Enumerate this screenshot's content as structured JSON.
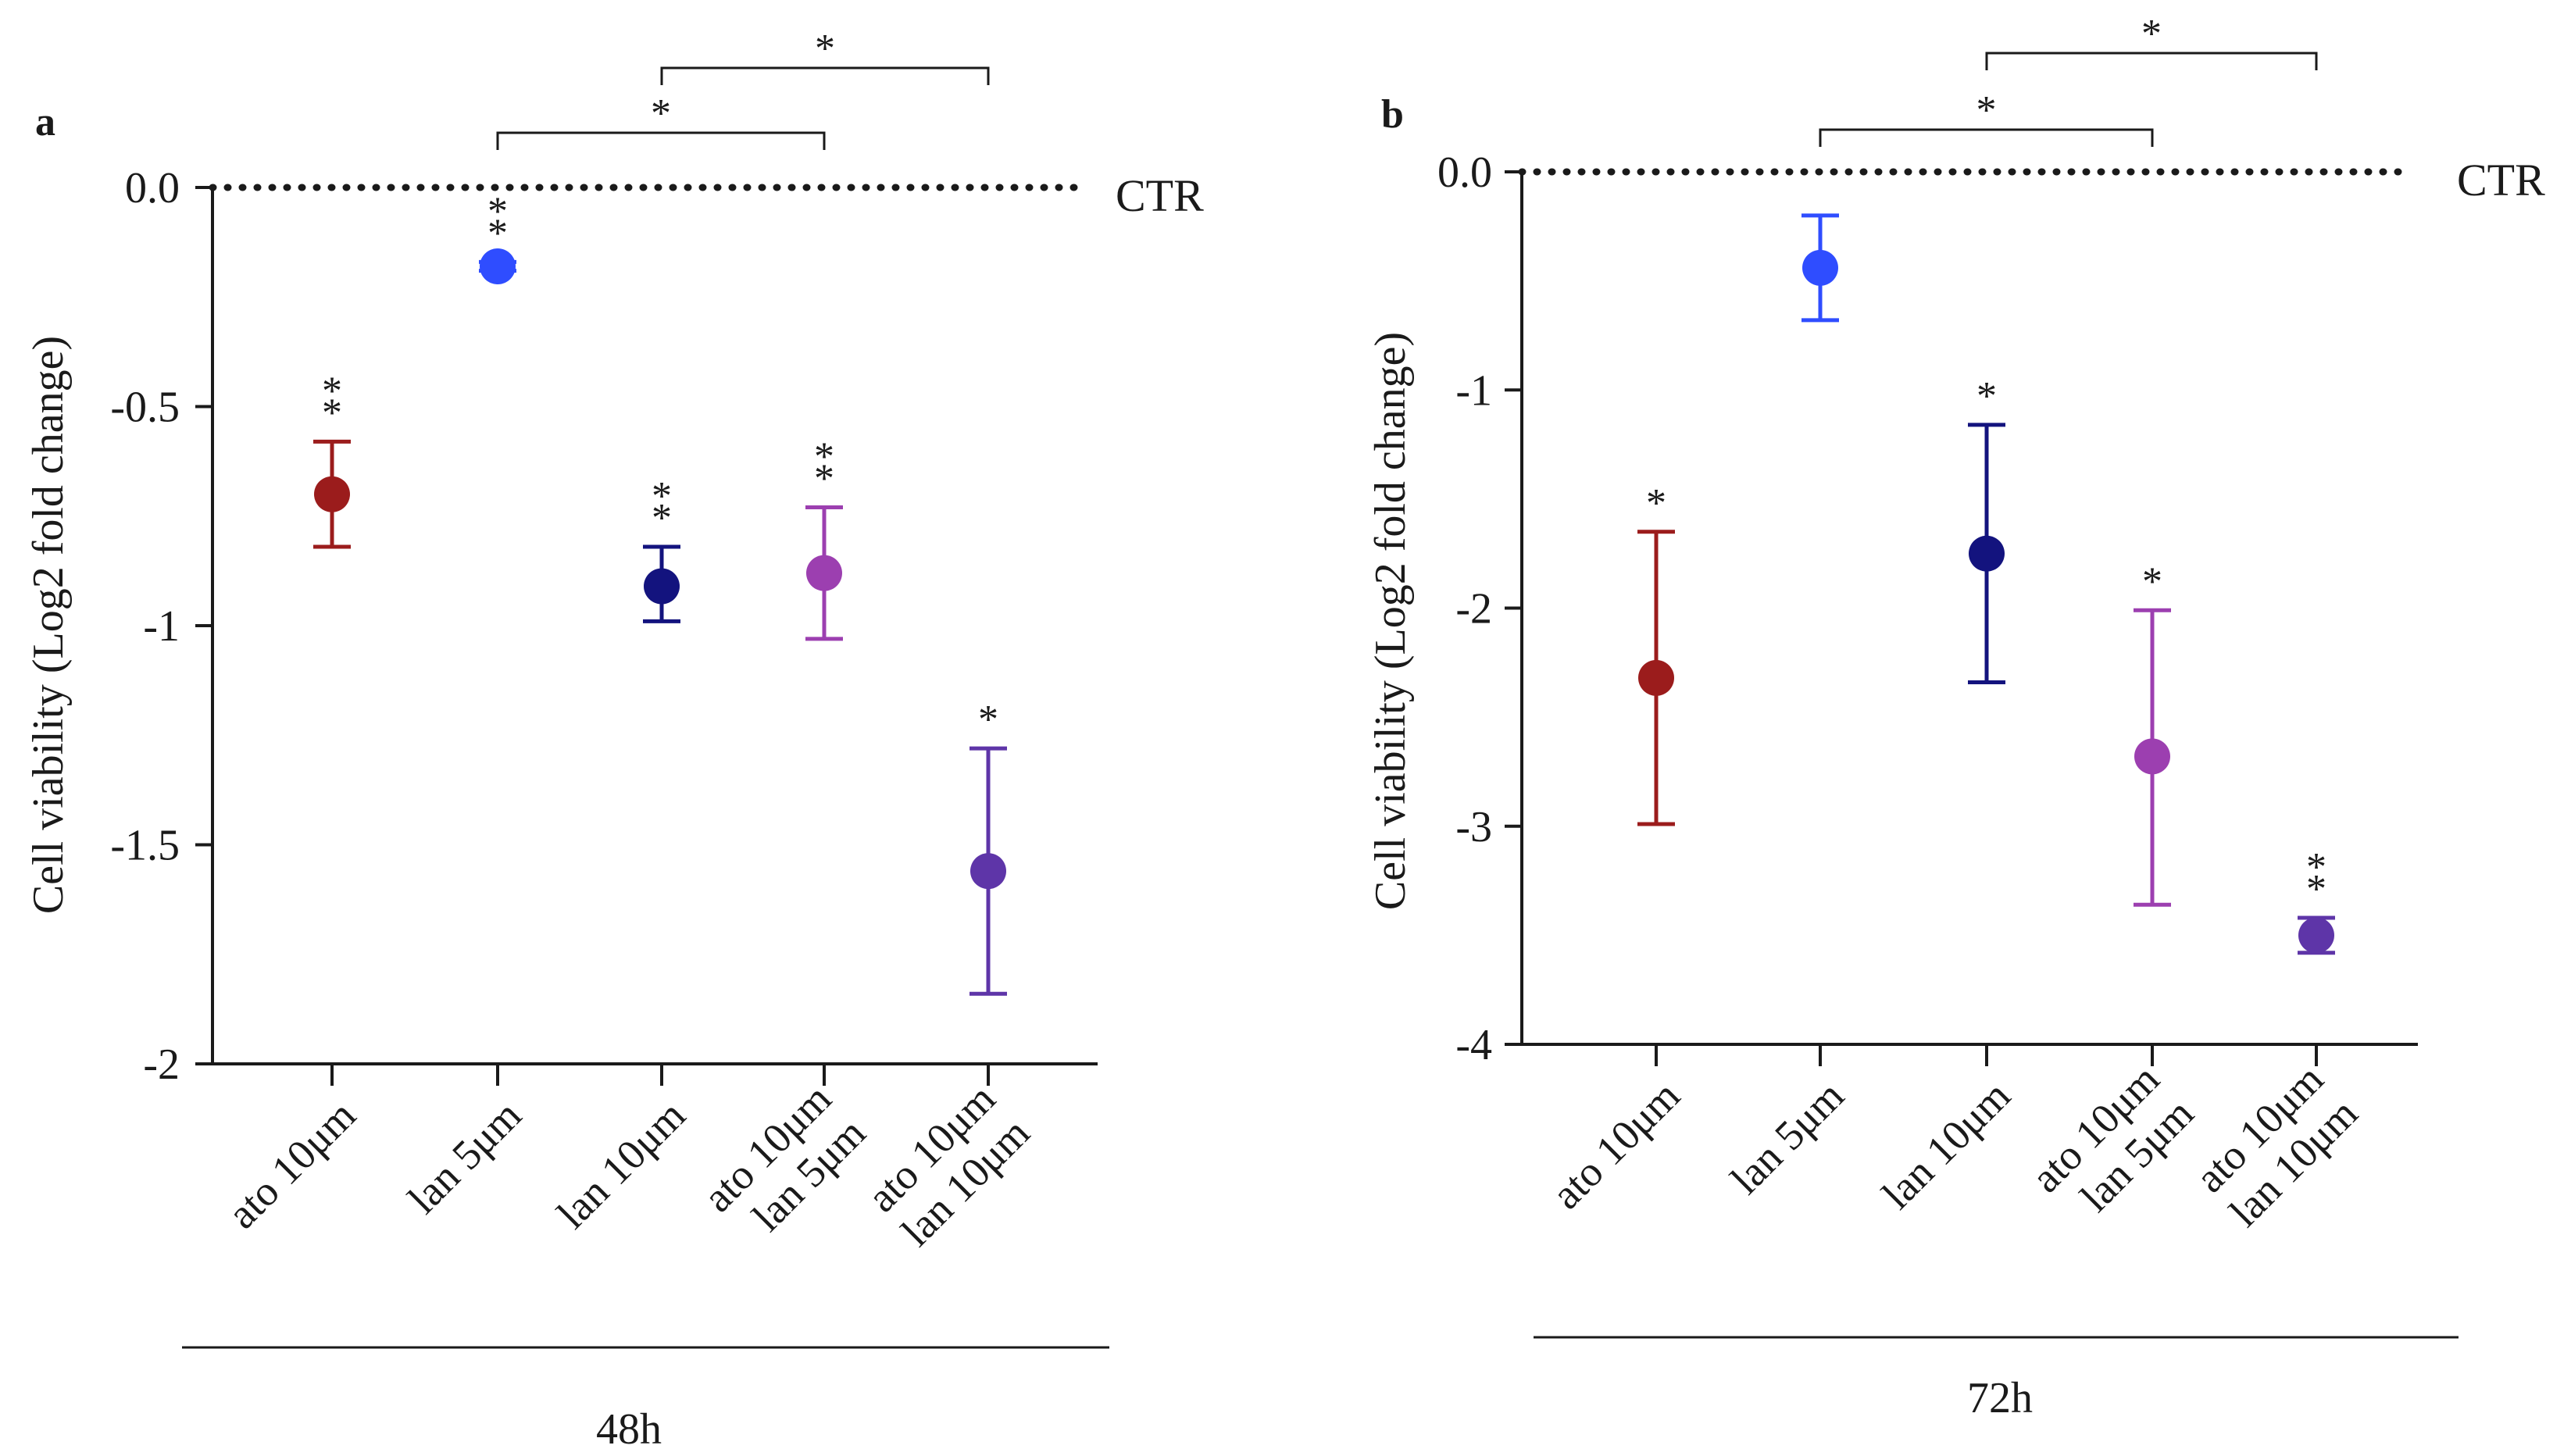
{
  "figure": {
    "background": "#ffffff",
    "ink": "#1a1a1a"
  },
  "chart_data": [
    {
      "type": "scatter",
      "panel_label": "a",
      "ylabel": "Cell viability (Log2 fold change)",
      "ylim": [
        -2,
        0
      ],
      "yticks": [
        0,
        -0.5,
        -1,
        -1.5,
        -2
      ],
      "ytick_labels": [
        "0.0",
        "-0.5",
        "-1",
        "-1.5",
        "-2"
      ],
      "reference_line": {
        "value": 0,
        "label": "CTR",
        "style": "dotted"
      },
      "categories": [
        [
          "ato 10μm"
        ],
        [
          "lan 5μm"
        ],
        [
          "lan 10μm"
        ],
        [
          "ato 10μm",
          "lan 5μm"
        ],
        [
          "ato 10μm",
          "lan 10μm"
        ]
      ],
      "values": [
        -0.7,
        -0.18,
        -0.91,
        -0.88,
        -1.56
      ],
      "error_low": [
        -0.82,
        -0.19,
        -0.99,
        -1.03,
        -1.84
      ],
      "error_high": [
        -0.58,
        -0.17,
        -0.82,
        -0.73,
        -1.28
      ],
      "colors": [
        "#9b1c1c",
        "#2f4dff",
        "#13137e",
        "#9c3fb0",
        "#5e35a8"
      ],
      "significance": [
        "**",
        "**",
        "**",
        "**",
        "*"
      ],
      "brackets": [
        {
          "from": 1,
          "to": 3,
          "label": "*",
          "level": 0
        },
        {
          "from": 2,
          "to": 4,
          "label": "*",
          "level": 1
        }
      ],
      "group_label": "48h"
    },
    {
      "type": "scatter",
      "panel_label": "b",
      "ylabel": "Cell viability (Log2 fold change)",
      "ylim": [
        -4,
        0
      ],
      "yticks": [
        0,
        -1,
        -2,
        -3,
        -4
      ],
      "ytick_labels": [
        "0.0",
        "-1",
        "-2",
        "-3",
        "-4"
      ],
      "reference_line": {
        "value": 0,
        "label": "CTR",
        "style": "dotted"
      },
      "categories": [
        [
          "ato 10μm"
        ],
        [
          "lan 5μm"
        ],
        [
          "lan 10μm"
        ],
        [
          "ato 10μm",
          "lan 5μm"
        ],
        [
          "ato 10μm",
          "lan 10μm"
        ]
      ],
      "values": [
        -2.32,
        -0.44,
        -1.75,
        -2.68,
        -3.5
      ],
      "error_low": [
        -2.99,
        -0.68,
        -2.34,
        -3.36,
        -3.58
      ],
      "error_high": [
        -1.65,
        -0.2,
        -1.16,
        -2.01,
        -3.42
      ],
      "colors": [
        "#9b1c1c",
        "#2f4dff",
        "#13137e",
        "#9c3fb0",
        "#5e35a8"
      ],
      "significance": [
        "*",
        "",
        "*",
        "*",
        "**"
      ],
      "brackets": [
        {
          "from": 1,
          "to": 3,
          "label": "*",
          "level": 0
        },
        {
          "from": 2,
          "to": 4,
          "label": "*",
          "level": 1
        }
      ],
      "group_label": "72h"
    }
  ]
}
